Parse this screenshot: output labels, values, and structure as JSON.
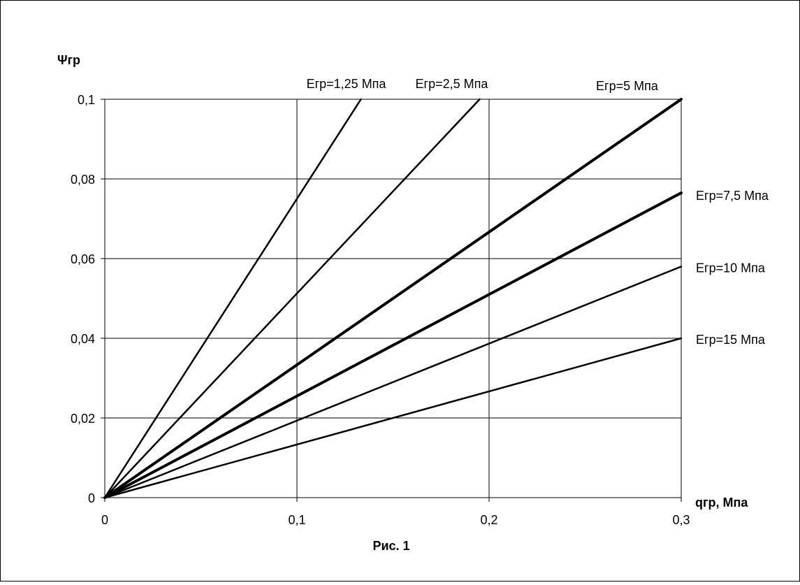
{
  "chart_data": {
    "type": "line",
    "title": "Рис. 1",
    "xlabel": "qгр, Мпа",
    "ylabel": "Ψгр",
    "xlim": [
      0,
      0.3
    ],
    "ylim": [
      0,
      0.1
    ],
    "x_ticks": [
      0,
      0.1,
      0.2,
      0.3
    ],
    "x_tick_labels": [
      "0",
      "0,1",
      "0,2",
      "0,3"
    ],
    "y_ticks": [
      0,
      0.02,
      0.04,
      0.06,
      0.08,
      0.1
    ],
    "y_tick_labels": [
      "0",
      "0,02",
      "0,04",
      "0,06",
      "0,08",
      "0,1"
    ],
    "grid": true,
    "legend": "labels placed at line ends",
    "colors": {
      "lines": "#000000",
      "grid": "#000000",
      "frame": "#000000",
      "background": "#ffffff"
    },
    "series": [
      {
        "name": "Егр=1,25 Мпа",
        "x": [
          0,
          0.1333
        ],
        "y": [
          0,
          0.1
        ],
        "emphasis": "normal"
      },
      {
        "name": "Егр=2,5 Мпа",
        "x": [
          0,
          0.1951
        ],
        "y": [
          0,
          0.1
        ],
        "emphasis": "normal"
      },
      {
        "name": "Егр=5 Мпа",
        "x": [
          0,
          0.3
        ],
        "y": [
          0,
          0.1
        ],
        "emphasis": "bold"
      },
      {
        "name": "Егр=7,5 Мпа",
        "x": [
          0,
          0.3
        ],
        "y": [
          0,
          0.0765
        ],
        "emphasis": "bold"
      },
      {
        "name": "Егр=10 Мпа",
        "x": [
          0,
          0.3
        ],
        "y": [
          0,
          0.058
        ],
        "emphasis": "normal"
      },
      {
        "name": "Егр=15 Мпа",
        "x": [
          0,
          0.3
        ],
        "y": [
          0,
          0.04
        ],
        "emphasis": "normal"
      }
    ]
  }
}
